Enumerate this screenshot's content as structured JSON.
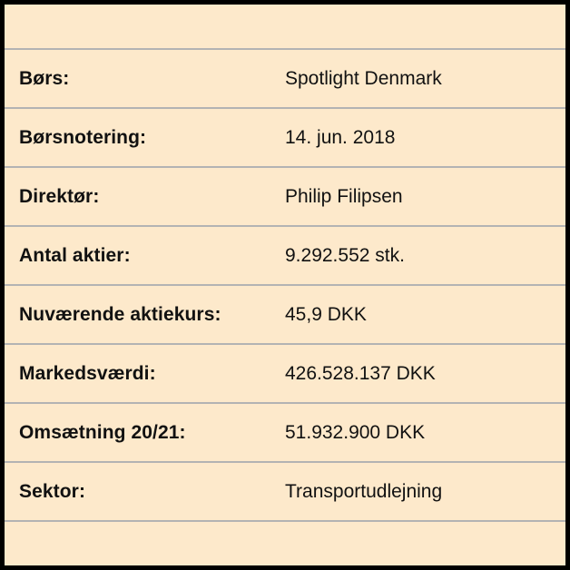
{
  "colors": {
    "background": "#fde9cb",
    "border": "#000000",
    "divider": "#b3b3b3",
    "text": "#111111"
  },
  "rows": [
    {
      "label": "Børs:",
      "value": "Spotlight Denmark"
    },
    {
      "label": "Børsnotering:",
      "value": "14. jun. 2018"
    },
    {
      "label": "Direktør:",
      "value": "Philip Filipsen"
    },
    {
      "label": "Antal aktier:",
      "value": "9.292.552 stk."
    },
    {
      "label": "Nuværende aktiekurs:",
      "value": "45,9 DKK"
    },
    {
      "label": "Markedsværdi:",
      "value": "426.528.137 DKK"
    },
    {
      "label": "Omsætning 20/21:",
      "value": "51.932.900 DKK"
    },
    {
      "label": "Sektor:",
      "value": "Transportudlejning"
    }
  ]
}
